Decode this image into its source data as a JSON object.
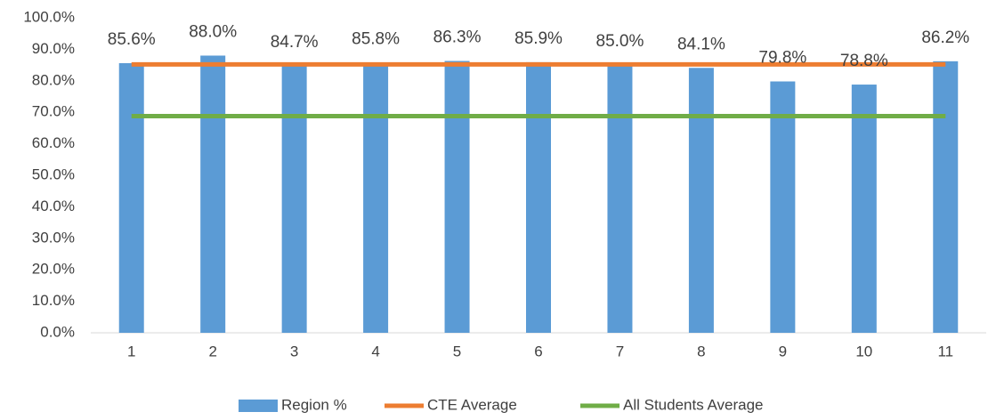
{
  "chart_data": {
    "type": "bar",
    "categories": [
      "1",
      "2",
      "3",
      "4",
      "5",
      "6",
      "7",
      "8",
      "9",
      "10",
      "11"
    ],
    "series": [
      {
        "name": "Region %",
        "type": "bar",
        "color": "#5b9bd5",
        "values": [
          85.6,
          88.0,
          84.7,
          85.8,
          86.3,
          85.9,
          85.0,
          84.1,
          79.8,
          78.8,
          86.2
        ],
        "value_labels": [
          "85.6%",
          "88.0%",
          "84.7%",
          "85.8%",
          "86.3%",
          "85.9%",
          "85.0%",
          "84.1%",
          "79.8%",
          "78.8%",
          "86.2%"
        ]
      },
      {
        "name": "CTE Average",
        "type": "line",
        "color": "#ed7d31",
        "values": [
          85.2,
          85.2,
          85.2,
          85.2,
          85.2,
          85.2,
          85.2,
          85.2,
          85.2,
          85.2,
          85.2
        ]
      },
      {
        "name": "All Students Average",
        "type": "line",
        "color": "#70ad47",
        "values": [
          68.8,
          68.8,
          68.8,
          68.8,
          68.8,
          68.8,
          68.8,
          68.8,
          68.8,
          68.8,
          68.8
        ]
      }
    ],
    "ylim": [
      0,
      100
    ],
    "yticks": [
      {
        "value": 0,
        "label": "0.0%"
      },
      {
        "value": 10,
        "label": "10.0%"
      },
      {
        "value": 20,
        "label": "20.0%"
      },
      {
        "value": 30,
        "label": "30.0%"
      },
      {
        "value": 40,
        "label": "40.0%"
      },
      {
        "value": 50,
        "label": "50.0%"
      },
      {
        "value": 60,
        "label": "60.0%"
      },
      {
        "value": 70,
        "label": "70.0%"
      },
      {
        "value": 80,
        "label": "80.0%"
      },
      {
        "value": 90,
        "label": "90.0%"
      },
      {
        "value": 100,
        "label": "100.0%"
      }
    ],
    "grid": false,
    "legend": "bottom"
  }
}
